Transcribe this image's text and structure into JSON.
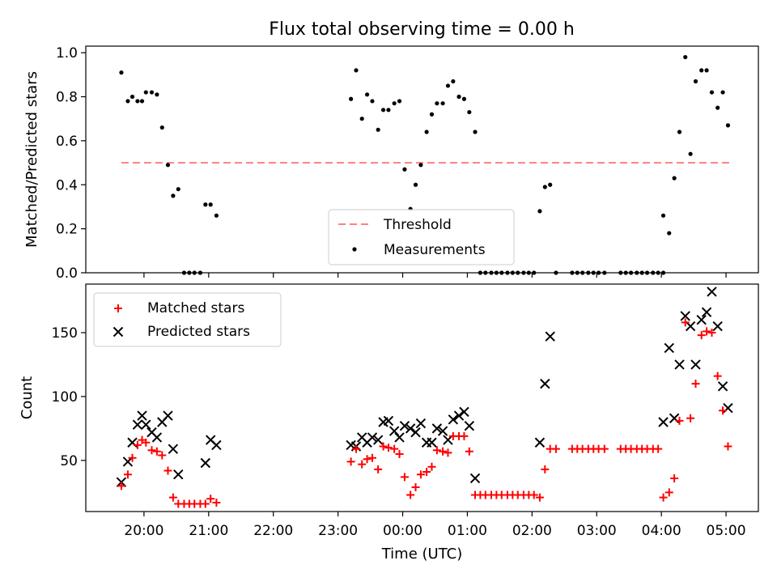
{
  "figure": {
    "title": "Flux total observing time = 0.00 h"
  },
  "chart_data": [
    {
      "type": "scatter",
      "panel": "top",
      "ylabel": "Matched/Predicted stars",
      "ylim": [
        0,
        1.03
      ],
      "yticks": [
        "0.0",
        "0.2",
        "0.4",
        "0.6",
        "0.8",
        "1.0"
      ],
      "ytick_values": [
        0,
        0.2,
        0.4,
        0.6,
        0.8,
        1.0
      ],
      "xlim_hours": [
        19.1,
        29.5
      ],
      "legend": {
        "position": "lower-center",
        "entries": [
          "Threshold",
          "Measurements"
        ]
      },
      "threshold": {
        "name": "Threshold",
        "value": 0.5,
        "x_range": [
          19.65,
          29.05
        ],
        "color": "#ff7f7f"
      },
      "series": [
        {
          "name": "Measurements",
          "color": "#000000",
          "points": [
            [
              19.65,
              0.91
            ],
            [
              19.75,
              0.78
            ],
            [
              19.82,
              0.8
            ],
            [
              19.9,
              0.78
            ],
            [
              19.97,
              0.78
            ],
            [
              20.03,
              0.82
            ],
            [
              20.12,
              0.82
            ],
            [
              20.2,
              0.81
            ],
            [
              20.28,
              0.66
            ],
            [
              20.37,
              0.49
            ],
            [
              20.45,
              0.35
            ],
            [
              20.53,
              0.38
            ],
            [
              20.62,
              0.0
            ],
            [
              20.7,
              0.0
            ],
            [
              20.78,
              0.0
            ],
            [
              20.87,
              0.0
            ],
            [
              20.95,
              0.31
            ],
            [
              21.03,
              0.31
            ],
            [
              21.12,
              0.26
            ],
            [
              23.2,
              0.79
            ],
            [
              23.28,
              0.92
            ],
            [
              23.37,
              0.7
            ],
            [
              23.45,
              0.81
            ],
            [
              23.53,
              0.78
            ],
            [
              23.62,
              0.65
            ],
            [
              23.7,
              0.74
            ],
            [
              23.78,
              0.74
            ],
            [
              23.87,
              0.77
            ],
            [
              23.95,
              0.78
            ],
            [
              24.03,
              0.47
            ],
            [
              24.12,
              0.29
            ],
            [
              24.2,
              0.4
            ],
            [
              24.28,
              0.49
            ],
            [
              24.37,
              0.64
            ],
            [
              24.45,
              0.72
            ],
            [
              24.53,
              0.77
            ],
            [
              24.62,
              0.77
            ],
            [
              24.7,
              0.85
            ],
            [
              24.78,
              0.87
            ],
            [
              24.87,
              0.8
            ],
            [
              24.95,
              0.79
            ],
            [
              25.03,
              0.73
            ],
            [
              25.12,
              0.64
            ],
            [
              25.2,
              0.0
            ],
            [
              25.28,
              0.0
            ],
            [
              25.37,
              0.0
            ],
            [
              25.45,
              0.0
            ],
            [
              25.53,
              0.0
            ],
            [
              25.62,
              0.0
            ],
            [
              25.7,
              0.0
            ],
            [
              25.78,
              0.0
            ],
            [
              25.87,
              0.0
            ],
            [
              25.95,
              0.0
            ],
            [
              26.03,
              0.0
            ],
            [
              26.12,
              0.28
            ],
            [
              26.2,
              0.39
            ],
            [
              26.28,
              0.4
            ],
            [
              26.37,
              0.0
            ],
            [
              26.62,
              0.0
            ],
            [
              26.7,
              0.0
            ],
            [
              26.78,
              0.0
            ],
            [
              26.87,
              0.0
            ],
            [
              26.95,
              0.0
            ],
            [
              27.03,
              0.0
            ],
            [
              27.12,
              0.0
            ],
            [
              27.37,
              0.0
            ],
            [
              27.45,
              0.0
            ],
            [
              27.53,
              0.0
            ],
            [
              27.62,
              0.0
            ],
            [
              27.7,
              0.0
            ],
            [
              27.78,
              0.0
            ],
            [
              27.87,
              0.0
            ],
            [
              27.95,
              0.0
            ],
            [
              28.03,
              0.0
            ],
            [
              28.03,
              0.26
            ],
            [
              28.12,
              0.18
            ],
            [
              28.2,
              0.43
            ],
            [
              28.28,
              0.64
            ],
            [
              28.37,
              0.98
            ],
            [
              28.45,
              0.54
            ],
            [
              28.53,
              0.87
            ],
            [
              28.62,
              0.92
            ],
            [
              28.7,
              0.92
            ],
            [
              28.78,
              0.82
            ],
            [
              28.87,
              0.75
            ],
            [
              28.95,
              0.82
            ],
            [
              29.03,
              0.67
            ]
          ]
        }
      ]
    },
    {
      "type": "scatter",
      "panel": "bottom",
      "xlabel": "Time (UTC)",
      "ylabel": "Count",
      "ylim": [
        10,
        188
      ],
      "yticks": [
        "50",
        "100",
        "150"
      ],
      "ytick_values": [
        50,
        100,
        150
      ],
      "xlim_hours": [
        19.1,
        29.5
      ],
      "xticks": [
        "20:00",
        "21:00",
        "22:00",
        "23:00",
        "00:00",
        "01:00",
        "02:00",
        "03:00",
        "04:00",
        "05:00"
      ],
      "xtick_hours": [
        20,
        21,
        22,
        23,
        24,
        25,
        26,
        27,
        28,
        29
      ],
      "legend": {
        "position": "upper-left",
        "entries": [
          "Matched stars",
          "Predicted stars"
        ]
      },
      "series": [
        {
          "name": "Matched stars",
          "marker": "+",
          "color": "#ff0000",
          "points": [
            [
              19.65,
              30
            ],
            [
              19.75,
              39
            ],
            [
              19.82,
              52
            ],
            [
              19.9,
              62
            ],
            [
              19.97,
              66
            ],
            [
              20.03,
              64
            ],
            [
              20.12,
              58
            ],
            [
              20.2,
              57
            ],
            [
              20.28,
              54
            ],
            [
              20.37,
              42
            ],
            [
              20.45,
              21
            ],
            [
              20.53,
              16
            ],
            [
              20.62,
              16
            ],
            [
              20.7,
              16
            ],
            [
              20.78,
              16
            ],
            [
              20.87,
              16
            ],
            [
              20.95,
              16
            ],
            [
              21.03,
              20
            ],
            [
              21.12,
              17
            ],
            [
              23.2,
              49
            ],
            [
              23.28,
              59
            ],
            [
              23.37,
              47
            ],
            [
              23.45,
              51
            ],
            [
              23.53,
              52
            ],
            [
              23.62,
              43
            ],
            [
              23.7,
              61
            ],
            [
              23.78,
              60
            ],
            [
              23.87,
              59
            ],
            [
              23.95,
              55
            ],
            [
              24.03,
              37
            ],
            [
              24.12,
              23
            ],
            [
              24.2,
              29
            ],
            [
              24.28,
              39
            ],
            [
              24.37,
              41
            ],
            [
              24.45,
              45
            ],
            [
              24.53,
              58
            ],
            [
              24.62,
              57
            ],
            [
              24.7,
              56
            ],
            [
              24.78,
              69
            ],
            [
              24.87,
              69
            ],
            [
              24.95,
              69
            ],
            [
              25.03,
              57
            ],
            [
              25.12,
              23
            ],
            [
              25.2,
              23
            ],
            [
              25.28,
              23
            ],
            [
              25.37,
              23
            ],
            [
              25.45,
              23
            ],
            [
              25.53,
              23
            ],
            [
              25.62,
              23
            ],
            [
              25.7,
              23
            ],
            [
              25.78,
              23
            ],
            [
              25.87,
              23
            ],
            [
              25.95,
              23
            ],
            [
              26.03,
              23
            ],
            [
              26.12,
              21
            ],
            [
              26.2,
              43
            ],
            [
              26.28,
              59
            ],
            [
              26.37,
              59
            ],
            [
              26.62,
              59
            ],
            [
              26.7,
              59
            ],
            [
              26.78,
              59
            ],
            [
              26.87,
              59
            ],
            [
              26.95,
              59
            ],
            [
              27.03,
              59
            ],
            [
              27.12,
              59
            ],
            [
              27.37,
              59
            ],
            [
              27.45,
              59
            ],
            [
              27.53,
              59
            ],
            [
              27.62,
              59
            ],
            [
              27.7,
              59
            ],
            [
              27.78,
              59
            ],
            [
              27.87,
              59
            ],
            [
              27.95,
              59
            ],
            [
              28.03,
              21
            ],
            [
              28.12,
              25
            ],
            [
              28.2,
              36
            ],
            [
              28.28,
              81
            ],
            [
              28.37,
              158
            ],
            [
              28.45,
              83
            ],
            [
              28.53,
              110
            ],
            [
              28.62,
              148
            ],
            [
              28.7,
              151
            ],
            [
              28.78,
              150
            ],
            [
              28.87,
              116
            ],
            [
              28.95,
              89
            ],
            [
              29.03,
              61
            ]
          ]
        },
        {
          "name": "Predicted stars",
          "marker": "x",
          "color": "#000000",
          "points": [
            [
              19.65,
              33
            ],
            [
              19.75,
              49
            ],
            [
              19.82,
              64
            ],
            [
              19.9,
              78
            ],
            [
              19.97,
              85
            ],
            [
              20.03,
              78
            ],
            [
              20.12,
              72
            ],
            [
              20.2,
              68
            ],
            [
              20.28,
              80
            ],
            [
              20.37,
              85
            ],
            [
              20.45,
              59
            ],
            [
              20.53,
              39
            ],
            [
              20.95,
              48
            ],
            [
              21.03,
              66
            ],
            [
              21.12,
              62
            ],
            [
              23.2,
              62
            ],
            [
              23.28,
              61
            ],
            [
              23.37,
              68
            ],
            [
              23.45,
              64
            ],
            [
              23.53,
              68
            ],
            [
              23.62,
              66
            ],
            [
              23.7,
              80
            ],
            [
              23.78,
              81
            ],
            [
              23.87,
              73
            ],
            [
              23.95,
              68
            ],
            [
              24.03,
              77
            ],
            [
              24.12,
              75
            ],
            [
              24.2,
              72
            ],
            [
              24.28,
              79
            ],
            [
              24.37,
              64
            ],
            [
              24.45,
              64
            ],
            [
              24.53,
              75
            ],
            [
              24.62,
              73
            ],
            [
              24.7,
              66
            ],
            [
              24.78,
              82
            ],
            [
              24.87,
              85
            ],
            [
              24.95,
              88
            ],
            [
              25.03,
              77
            ],
            [
              25.12,
              36
            ],
            [
              26.12,
              64
            ],
            [
              26.2,
              110
            ],
            [
              26.28,
              147
            ],
            [
              28.03,
              80
            ],
            [
              28.12,
              138
            ],
            [
              28.2,
              83
            ],
            [
              28.28,
              125
            ],
            [
              28.37,
              163
            ],
            [
              28.45,
              155
            ],
            [
              28.53,
              125
            ],
            [
              28.62,
              160
            ],
            [
              28.7,
              166
            ],
            [
              28.78,
              182
            ],
            [
              28.87,
              155
            ],
            [
              28.95,
              108
            ],
            [
              29.03,
              91
            ]
          ]
        }
      ]
    }
  ]
}
